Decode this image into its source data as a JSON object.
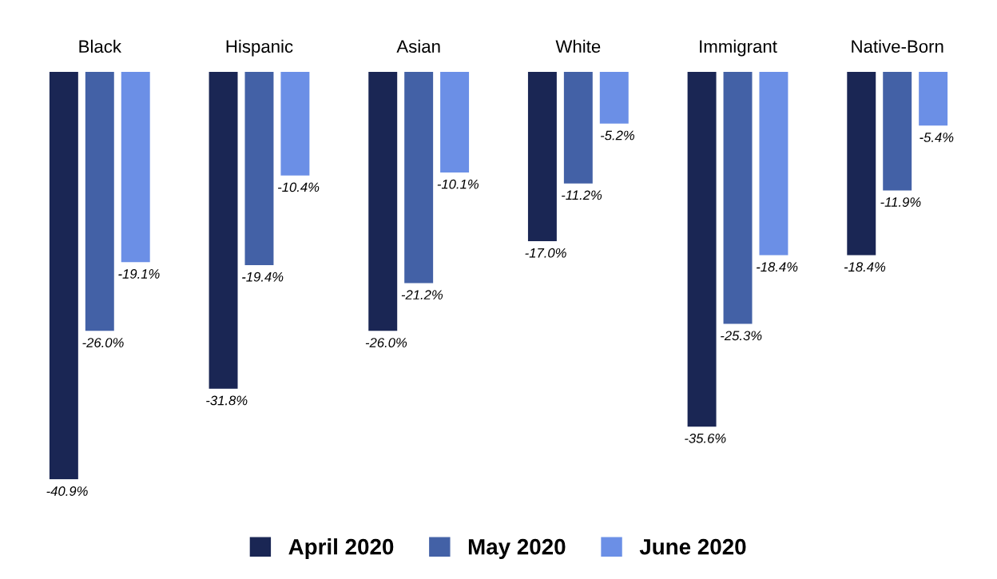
{
  "chart_data": {
    "type": "bar",
    "categories": [
      "Black",
      "Hispanic",
      "Asian",
      "White",
      "Immigrant",
      "Native-Born"
    ],
    "series": [
      {
        "name": "April 2020",
        "color": "#1a2654",
        "values": [
          -40.9,
          -31.8,
          -26.0,
          -17.0,
          -35.6,
          -18.4
        ],
        "value_labels": [
          "-40.9%",
          "-31.8%",
          "-26.0%",
          "-17.0%",
          "-35.6%",
          "-18.4%"
        ]
      },
      {
        "name": "May 2020",
        "color": "#4361a6",
        "values": [
          -26.0,
          -19.4,
          -21.2,
          -11.2,
          -25.3,
          -11.9
        ],
        "value_labels": [
          "-26.0%",
          "-19.4%",
          "-21.2%",
          "-11.2%",
          "-25.3%",
          "-11.9%"
        ]
      },
      {
        "name": "June 2020",
        "color": "#6b8fe6",
        "values": [
          -19.1,
          -10.4,
          -10.1,
          -5.2,
          -18.4,
          -5.4
        ],
        "value_labels": [
          "-19.1%",
          "-10.4%",
          "-10.1%",
          "-5.2%",
          "-18.4%",
          "-5.4%"
        ]
      }
    ],
    "tick_labels": "x",
    "grid": false,
    "legend": "bottom"
  }
}
